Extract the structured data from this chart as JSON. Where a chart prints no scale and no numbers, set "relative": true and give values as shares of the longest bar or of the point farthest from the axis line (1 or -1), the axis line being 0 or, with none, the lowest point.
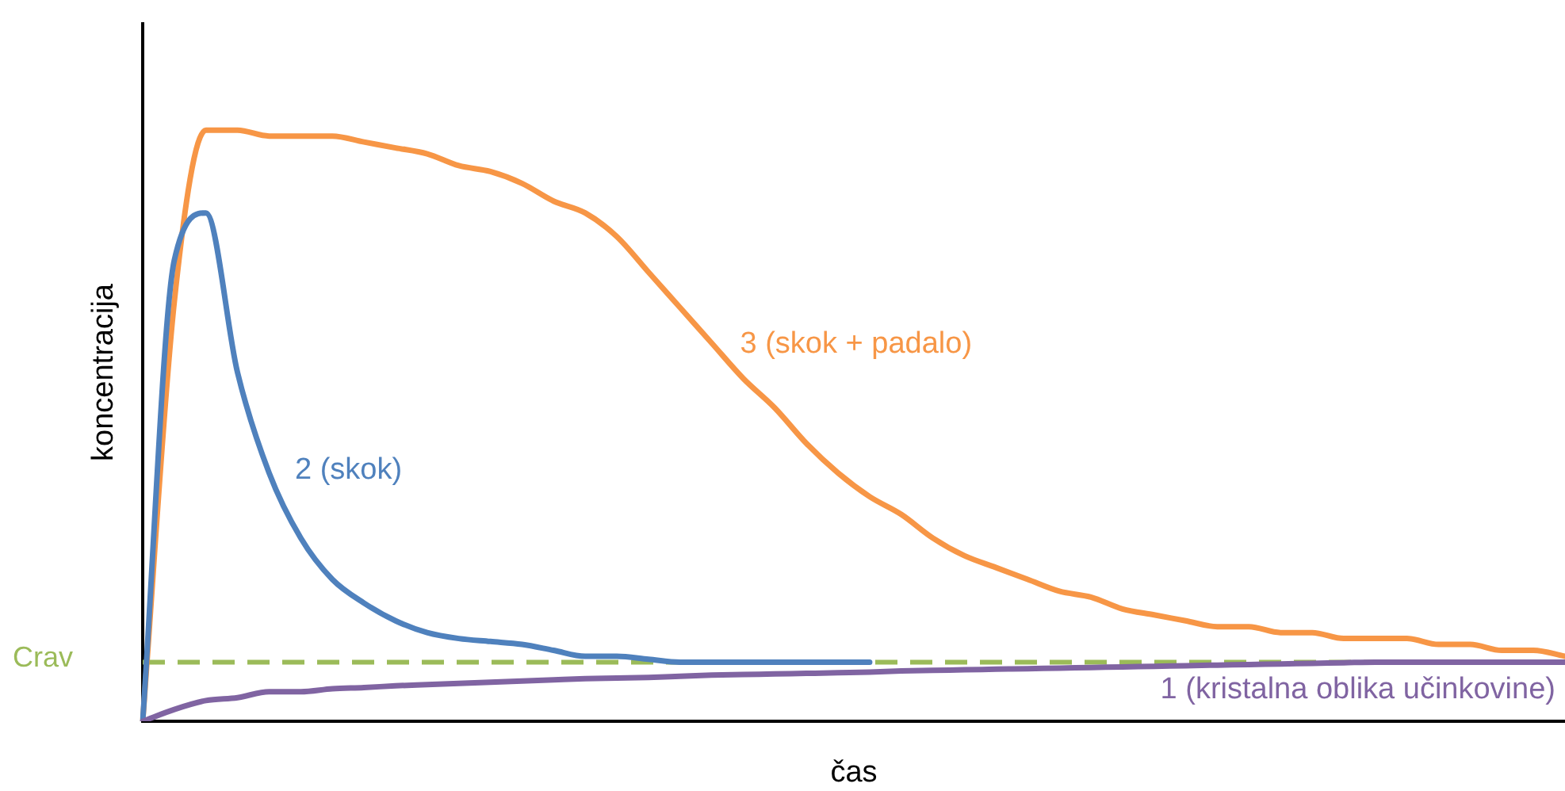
{
  "chart_data": {
    "type": "line",
    "relative": true,
    "xlabel": "čas",
    "ylabel": "koncentracija",
    "grid": false,
    "legend": false,
    "marker": "none",
    "line_style": "solid",
    "categories": [
      null,
      null,
      null,
      null,
      null,
      null,
      null,
      null,
      null,
      null,
      null,
      null,
      null,
      null,
      null,
      null,
      null,
      null,
      null,
      null,
      null,
      null,
      null,
      null,
      null,
      null,
      null,
      null,
      null,
      null,
      null,
      null,
      null,
      null,
      null,
      null,
      null,
      null,
      null,
      null,
      null,
      null,
      null,
      null,
      null,
      null
    ],
    "series": [
      {
        "name": "1 (kristalna oblika učinkovine)",
        "color": "#8064a2",
        "values": [
          0,
          0.02,
          0.035,
          0.04,
          0.05,
          0.05,
          0.055,
          0.057,
          0.06,
          0.062,
          0.064,
          0.066,
          0.068,
          0.07,
          0.072,
          0.073,
          0.074,
          0.076,
          0.078,
          0.079,
          0.08,
          0.081,
          0.082,
          0.083,
          0.085,
          0.086,
          0.087,
          0.088,
          0.089,
          0.09,
          0.091,
          0.092,
          0.093,
          0.094,
          0.095,
          0.096,
          0.097,
          0.098,
          0.099,
          0.1,
          0.1,
          0.1,
          0.1,
          0.1,
          0.1,
          0.1
        ]
      },
      {
        "name": "2 (skok)",
        "color": "#4f81bd",
        "values": [
          0,
          0.78,
          0.86,
          0.59,
          0.42,
          0.31,
          0.24,
          0.2,
          0.17,
          0.15,
          0.14,
          0.135,
          0.13,
          0.12,
          0.11,
          0.11,
          0.105,
          0.1,
          0.1,
          0.1,
          0.1,
          0.1,
          0.1,
          0.1,
          null,
          null,
          null,
          null,
          null,
          null,
          null,
          null,
          null,
          null,
          null,
          null,
          null,
          null,
          null,
          null,
          null,
          null,
          null,
          null,
          null,
          null
        ]
      },
      {
        "name": "3 (skok + padalo)",
        "color": "#f79646",
        "values": [
          0,
          0.71,
          1,
          1,
          0.99,
          0.99,
          0.99,
          0.98,
          0.97,
          0.96,
          0.94,
          0.93,
          0.91,
          0.88,
          0.86,
          0.82,
          0.76,
          0.7,
          0.64,
          0.58,
          0.53,
          0.47,
          0.42,
          0.38,
          0.35,
          0.31,
          0.28,
          0.26,
          0.24,
          0.22,
          0.21,
          0.19,
          0.18,
          0.17,
          0.16,
          0.16,
          0.15,
          0.15,
          0.14,
          0.14,
          0.14,
          0.13,
          0.13,
          0.12,
          0.12,
          0.11
        ]
      }
    ],
    "ref_lines": [
      {
        "axis": "y",
        "value": 0.1,
        "label": "Crav",
        "color": "#9bbb59",
        "line_style": "dashed"
      }
    ]
  }
}
